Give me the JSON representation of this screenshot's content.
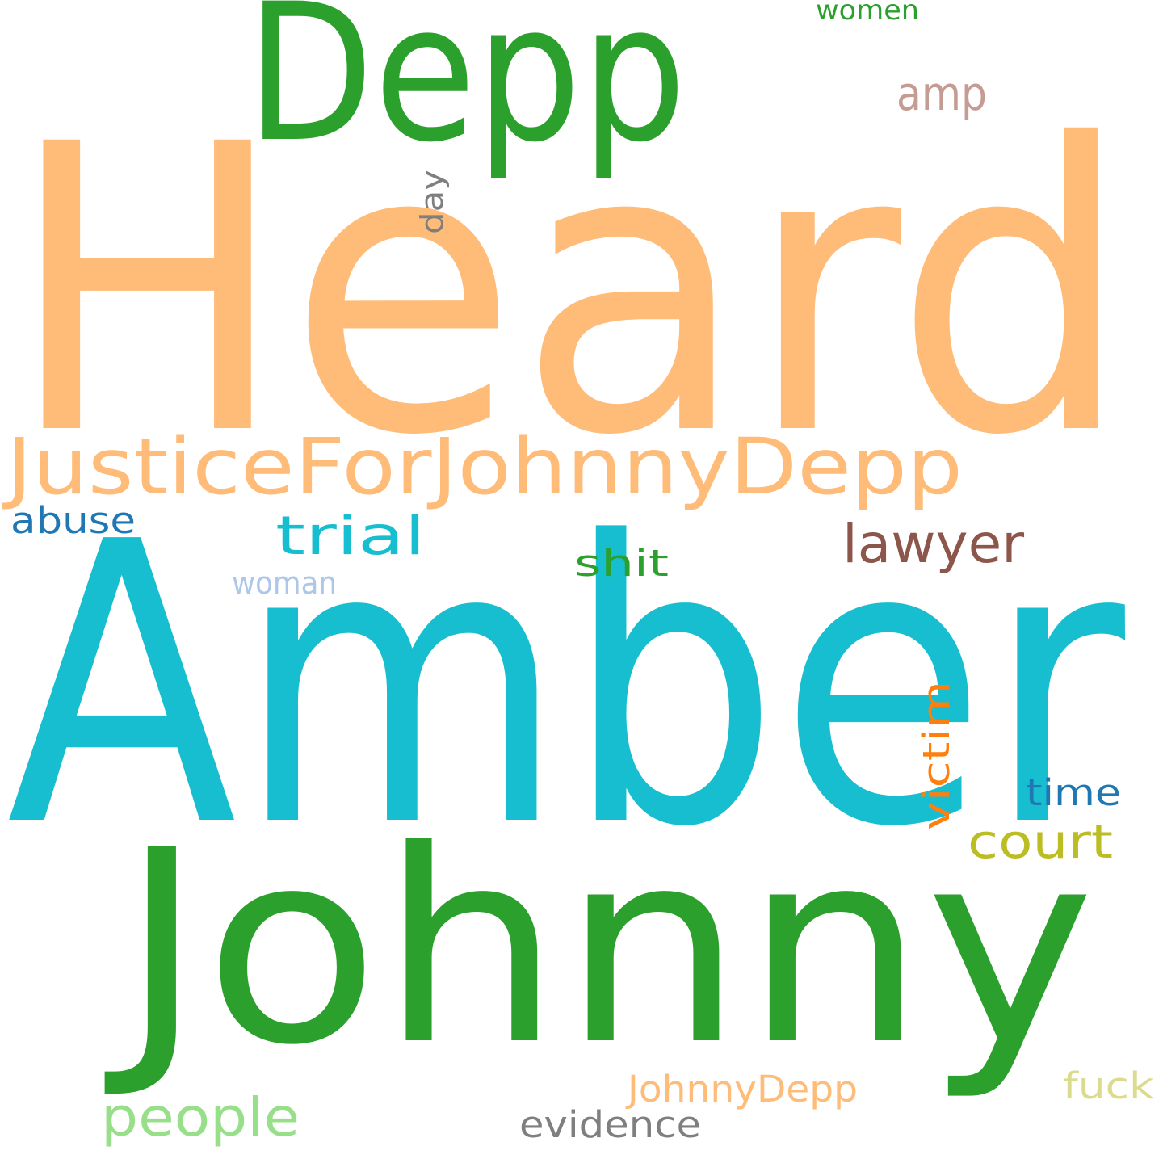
{
  "words": [
    {
      "text": "Heard",
      "color": "#ffbb78"
    },
    {
      "text": "Amber",
      "color": "#17becf"
    },
    {
      "text": "Johnny",
      "color": "#2ca02c"
    },
    {
      "text": "Depp",
      "color": "#2ca02c"
    },
    {
      "text": "JusticeForJohnnyDepp",
      "color": "#ffbb78"
    },
    {
      "text": "lawyer",
      "color": "#8c564b"
    },
    {
      "text": "trial",
      "color": "#17becf"
    },
    {
      "text": "people",
      "color": "#98df8a"
    },
    {
      "text": "court",
      "color": "#bcbd22"
    },
    {
      "text": "amp",
      "color": "#c49c94"
    },
    {
      "text": "abuse",
      "color": "#1f77b4"
    },
    {
      "text": "shit",
      "color": "#2ca02c"
    },
    {
      "text": "victim",
      "color": "#ff7f0e"
    },
    {
      "text": "time",
      "color": "#1f77b4"
    },
    {
      "text": "JohnnyDepp",
      "color": "#ffbb78"
    },
    {
      "text": "evidence",
      "color": "#7f7f7f"
    },
    {
      "text": "woman",
      "color": "#aec7e8"
    },
    {
      "text": "fuck",
      "color": "#dbdb8d"
    },
    {
      "text": "day",
      "color": "#7f7f7f"
    },
    {
      "text": "women",
      "color": "#2ca02c"
    }
  ]
}
